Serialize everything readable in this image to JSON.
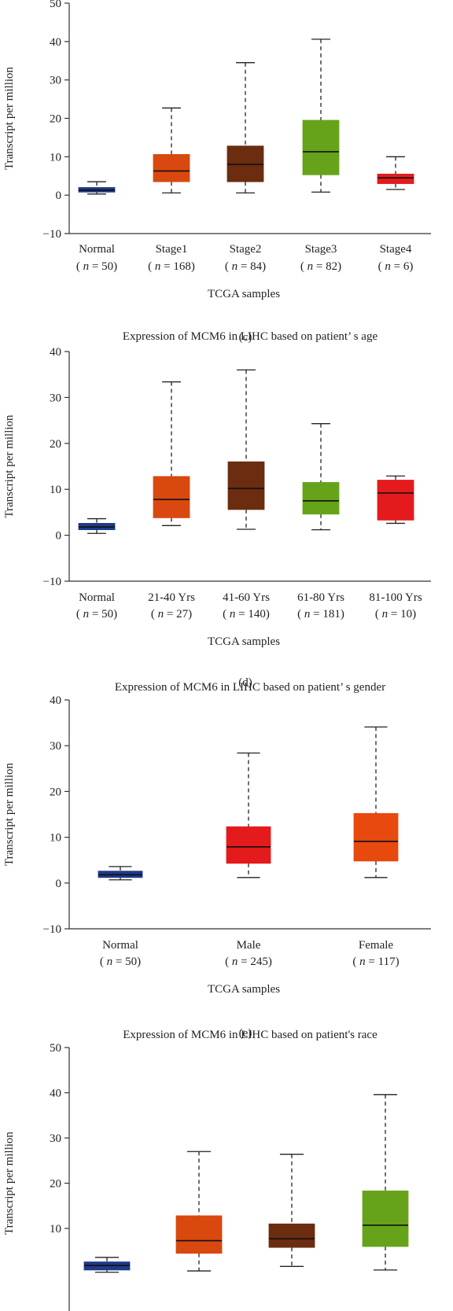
{
  "chart_data": [
    {
      "type": "boxplot",
      "panel_label": "(c)",
      "title": "",
      "xlabel": "TCGA samples",
      "ylabel": "Transcript per million",
      "ylim": [
        -10,
        50
      ],
      "yticks": [
        -10,
        0,
        10,
        20,
        30,
        40,
        50
      ],
      "grid": false,
      "boxes": [
        {
          "category": "Normal",
          "n_label": "( n = 50)",
          "min": 0.3,
          "q1": 0.8,
          "median": 1.3,
          "q3": 2.0,
          "max": 3.5,
          "color": "#1f3a8a"
        },
        {
          "category": "Stage1",
          "n_label": "( n = 168)",
          "min": 0.6,
          "q1": 3.5,
          "median": 6.3,
          "q3": 10.6,
          "max": 22.7,
          "color": "#d9480f"
        },
        {
          "category": "Stage2",
          "n_label": "( n = 84)",
          "min": 0.6,
          "q1": 3.5,
          "median": 8.0,
          "q3": 12.8,
          "max": 34.5,
          "color": "#6b2c10"
        },
        {
          "category": "Stage3",
          "n_label": "( n = 82)",
          "min": 0.8,
          "q1": 5.3,
          "median": 11.3,
          "q3": 19.5,
          "max": 40.6,
          "color": "#66a31a"
        },
        {
          "category": "Stage4",
          "n_label": "( n = 6)",
          "min": 1.5,
          "q1": 3.0,
          "median": 4.5,
          "q3": 5.5,
          "max": 10.0,
          "color": "#e41a1c"
        }
      ]
    },
    {
      "type": "boxplot",
      "panel_label": "(d)",
      "title": "Expression of MCM6 in LIHC based on patient’ s age",
      "xlabel": "TCGA samples",
      "ylabel": "Transcript per million",
      "ylim": [
        -10,
        40
      ],
      "yticks": [
        -10,
        0,
        10,
        20,
        30,
        40
      ],
      "grid": false,
      "boxes": [
        {
          "category": "Normal",
          "n_label": "( n = 50)",
          "min": 0.4,
          "q1": 1.2,
          "median": 1.8,
          "q3": 2.6,
          "max": 3.6,
          "color": "#1f3a8a"
        },
        {
          "category": "21-40 Yrs",
          "n_label": "( n = 27)",
          "min": 2.1,
          "q1": 3.8,
          "median": 7.8,
          "q3": 12.8,
          "max": 33.4,
          "color": "#d9480f"
        },
        {
          "category": "41-60 Yrs",
          "n_label": "( n = 140)",
          "min": 1.3,
          "q1": 5.6,
          "median": 10.2,
          "q3": 16.0,
          "max": 36.0,
          "color": "#6b2c10"
        },
        {
          "category": "61-80 Yrs",
          "n_label": "( n = 181)",
          "min": 1.2,
          "q1": 4.6,
          "median": 7.5,
          "q3": 11.5,
          "max": 24.3,
          "color": "#66a31a"
        },
        {
          "category": "81-100 Yrs",
          "n_label": "( n = 10)",
          "min": 2.6,
          "q1": 3.3,
          "median": 9.2,
          "q3": 12.0,
          "max": 12.9,
          "color": "#e41a1c"
        }
      ]
    },
    {
      "type": "boxplot",
      "panel_label": "(e)",
      "title": "Expression of MCM6 in LIHC based on patient’ s gender",
      "xlabel": "TCGA samples",
      "ylabel": "Transcript per million",
      "ylim": [
        -10,
        40
      ],
      "yticks": [
        -10,
        0,
        10,
        20,
        30,
        40
      ],
      "grid": false,
      "boxes": [
        {
          "category": "Normal",
          "n_label": "( n = 50)",
          "min": 0.7,
          "q1": 1.2,
          "median": 1.8,
          "q3": 2.6,
          "max": 3.6,
          "color": "#1f3a8a"
        },
        {
          "category": "Male",
          "n_label": "( n = 245)",
          "min": 1.2,
          "q1": 4.3,
          "median": 7.9,
          "q3": 12.3,
          "max": 28.4,
          "color": "#e41a1c"
        },
        {
          "category": "Female",
          "n_label": "( n = 117)",
          "min": 1.2,
          "q1": 4.8,
          "median": 9.1,
          "q3": 15.2,
          "max": 34.1,
          "color": "#e8490f"
        }
      ]
    },
    {
      "type": "boxplot",
      "panel_label": "",
      "title": "Expression of MCM6 in LIHC based on patient's race",
      "xlabel": "",
      "ylabel": "Transcript per million",
      "ylim": [
        -10,
        50
      ],
      "yticks": [
        10,
        20,
        30,
        40,
        50
      ],
      "grid": false,
      "boxes": [
        {
          "category": "",
          "n_label": "",
          "min": 0.3,
          "q1": 0.8,
          "median": 1.8,
          "q3": 2.6,
          "max": 3.6,
          "color": "#1f3a8a"
        },
        {
          "category": "",
          "n_label": "",
          "min": 0.6,
          "q1": 4.5,
          "median": 7.3,
          "q3": 12.8,
          "max": 27.0,
          "color": "#d9480f"
        },
        {
          "category": "",
          "n_label": "",
          "min": 1.6,
          "q1": 5.8,
          "median": 7.7,
          "q3": 11.0,
          "max": 26.4,
          "color": "#6b2c10"
        },
        {
          "category": "",
          "n_label": "",
          "min": 0.8,
          "q1": 6.0,
          "median": 10.7,
          "q3": 18.3,
          "max": 39.6,
          "color": "#66a31a"
        }
      ]
    }
  ]
}
